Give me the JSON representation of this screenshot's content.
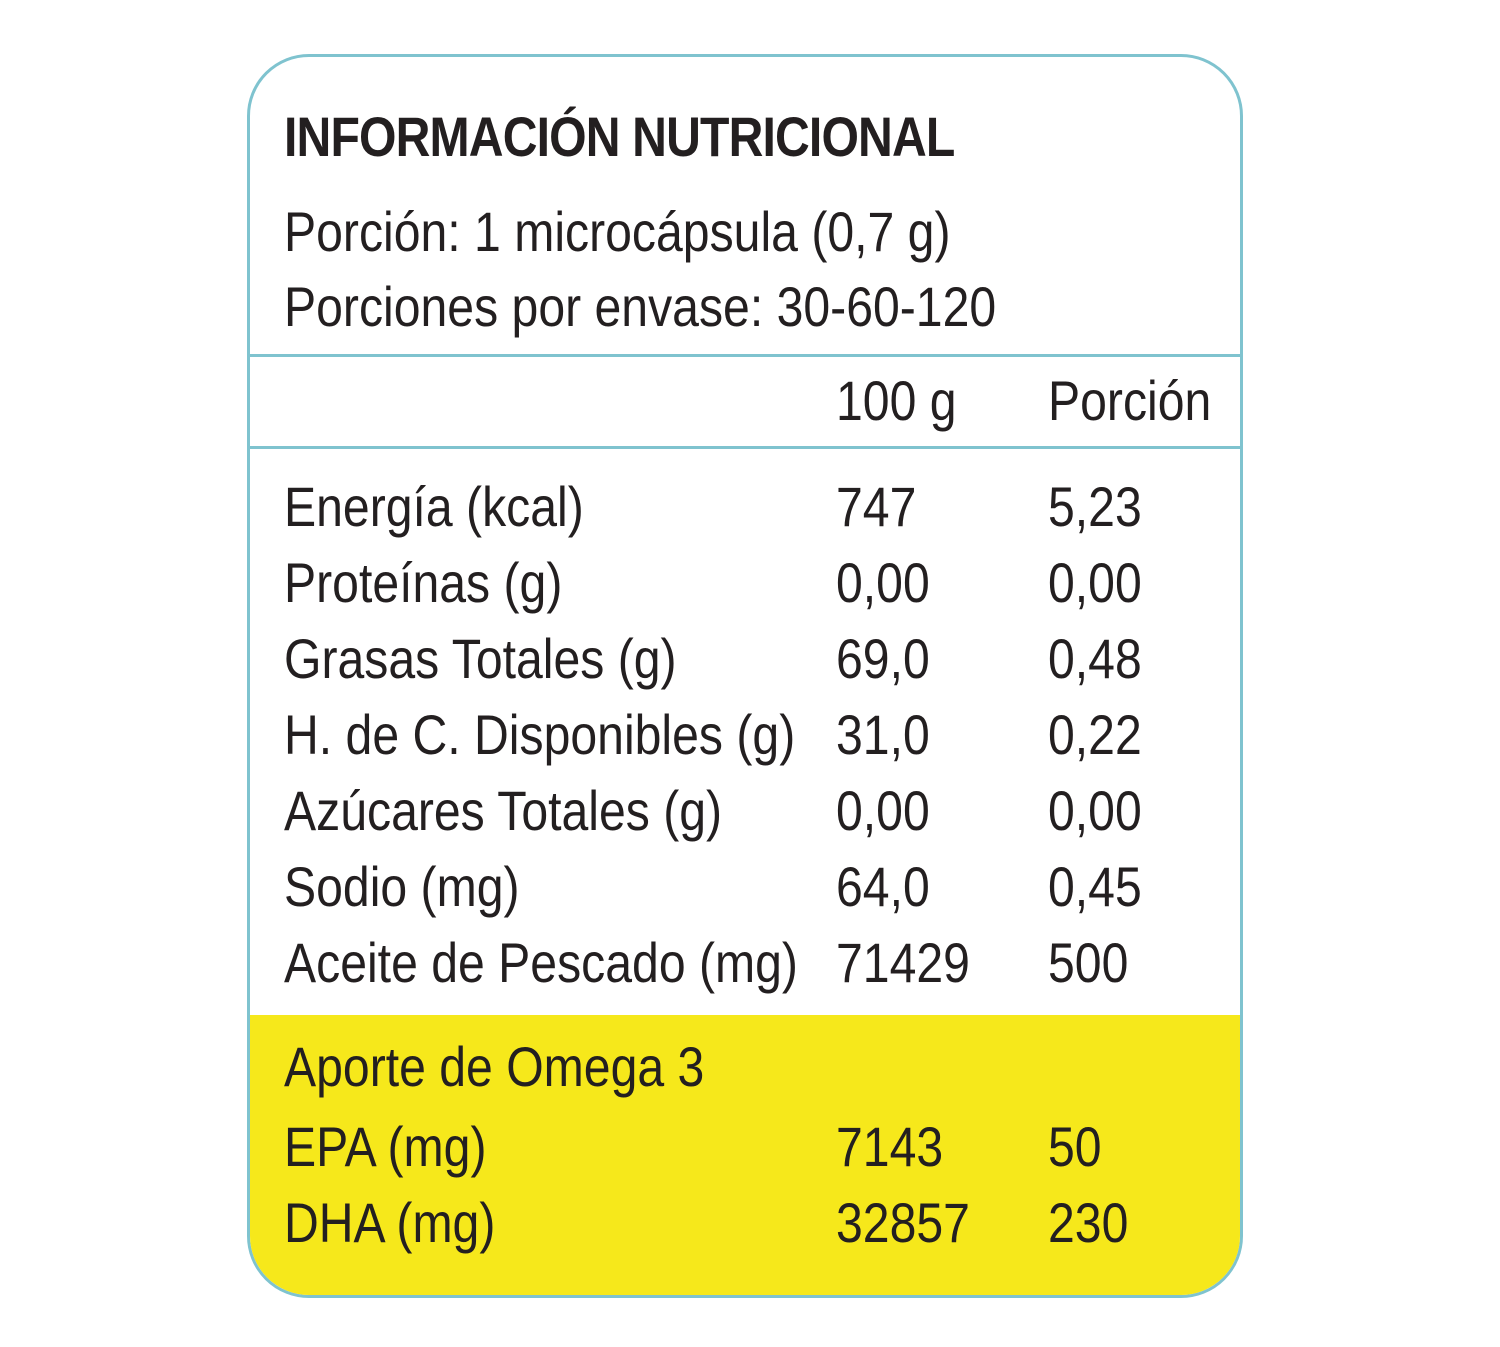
{
  "label": {
    "title": "INFORMACIÓN NUTRICIONAL",
    "serving_size": "Porción: 1 microcápsula (0,7 g)",
    "servings_per_container": "Porciones por envase: 30-60-120",
    "columns": {
      "per_100g": "100 g",
      "per_serving": "Porción"
    },
    "nutrients": [
      {
        "name": "Energía (kcal)",
        "per_100g": "747",
        "per_serving": "5,23"
      },
      {
        "name": "Proteínas (g)",
        "per_100g": "0,00",
        "per_serving": "0,00"
      },
      {
        "name": "Grasas Totales (g)",
        "per_100g": "69,0",
        "per_serving": "0,48"
      },
      {
        "name": "H. de C. Disponibles (g)",
        "per_100g": "31,0",
        "per_serving": "0,22"
      },
      {
        "name": "Azúcares Totales (g)",
        "per_100g": "0,00",
        "per_serving": "0,00"
      },
      {
        "name": "Sodio (mg)",
        "per_100g": "64,0",
        "per_serving": "0,45"
      },
      {
        "name": "Aceite de Pescado (mg)",
        "per_100g": "71429",
        "per_serving": "500"
      }
    ],
    "omega3": {
      "title": "Aporte de Omega 3",
      "rows": [
        {
          "name": "EPA (mg)",
          "per_100g": "7143",
          "per_serving": "50"
        },
        {
          "name": "DHA (mg)",
          "per_100g": "32857",
          "per_serving": "230"
        }
      ]
    }
  },
  "colors": {
    "border": "#7fc3cf",
    "omega_background": "#f6e81b",
    "text": "#231f20"
  }
}
